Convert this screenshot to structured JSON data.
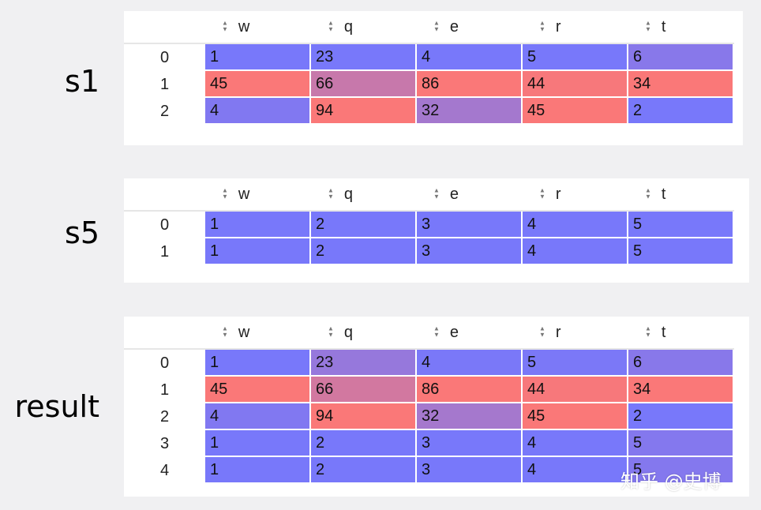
{
  "colors": {
    "low": "#7878fa",
    "high": "#fa7878"
  },
  "columns": [
    "w",
    "q",
    "e",
    "r",
    "t"
  ],
  "tables": [
    {
      "label": "s1",
      "rows": [
        {
          "index": "0",
          "values": [
            "1",
            "23",
            "4",
            "5",
            "6"
          ]
        },
        {
          "index": "1",
          "values": [
            "45",
            "66",
            "86",
            "44",
            "34"
          ]
        },
        {
          "index": "2",
          "values": [
            "4",
            "94",
            "32",
            "45",
            "2"
          ]
        }
      ]
    },
    {
      "label": "s5",
      "rows": [
        {
          "index": "0",
          "values": [
            "1",
            "2",
            "3",
            "4",
            "5"
          ]
        },
        {
          "index": "1",
          "values": [
            "1",
            "2",
            "3",
            "4",
            "5"
          ]
        }
      ]
    },
    {
      "label": "result",
      "rows": [
        {
          "index": "0",
          "values": [
            "1",
            "23",
            "4",
            "5",
            "6"
          ]
        },
        {
          "index": "1",
          "values": [
            "45",
            "66",
            "86",
            "44",
            "34"
          ]
        },
        {
          "index": "2",
          "values": [
            "4",
            "94",
            "32",
            "45",
            "2"
          ]
        },
        {
          "index": "3",
          "values": [
            "1",
            "2",
            "3",
            "4",
            "5"
          ]
        },
        {
          "index": "4",
          "values": [
            "1",
            "2",
            "3",
            "4",
            "5"
          ]
        }
      ]
    }
  ],
  "watermark": "知乎 @史博"
}
